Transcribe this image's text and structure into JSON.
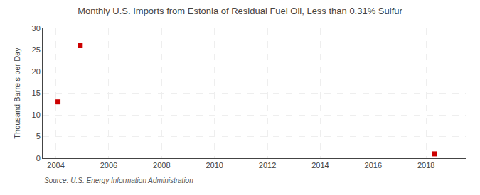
{
  "chart_data": {
    "type": "scatter",
    "title": "Monthly U.S. Imports from Estonia of Residual Fuel Oil, Less than 0.31% Sulfur",
    "ylabel": "Thousand Barrels per Day",
    "source": "Source: U.S. Energy Information Administration",
    "x": [
      2004.08,
      2004.92,
      2018.33
    ],
    "values": [
      13,
      26,
      1
    ],
    "color": "#cc0000",
    "marker": "square",
    "xlim": [
      2003.5,
      2019.5
    ],
    "xticks": [
      2004,
      2006,
      2008,
      2010,
      2012,
      2014,
      2016,
      2018
    ],
    "ylim": [
      0,
      30
    ],
    "yticks": [
      0,
      5,
      10,
      15,
      20,
      25,
      30
    ],
    "grid": true
  }
}
